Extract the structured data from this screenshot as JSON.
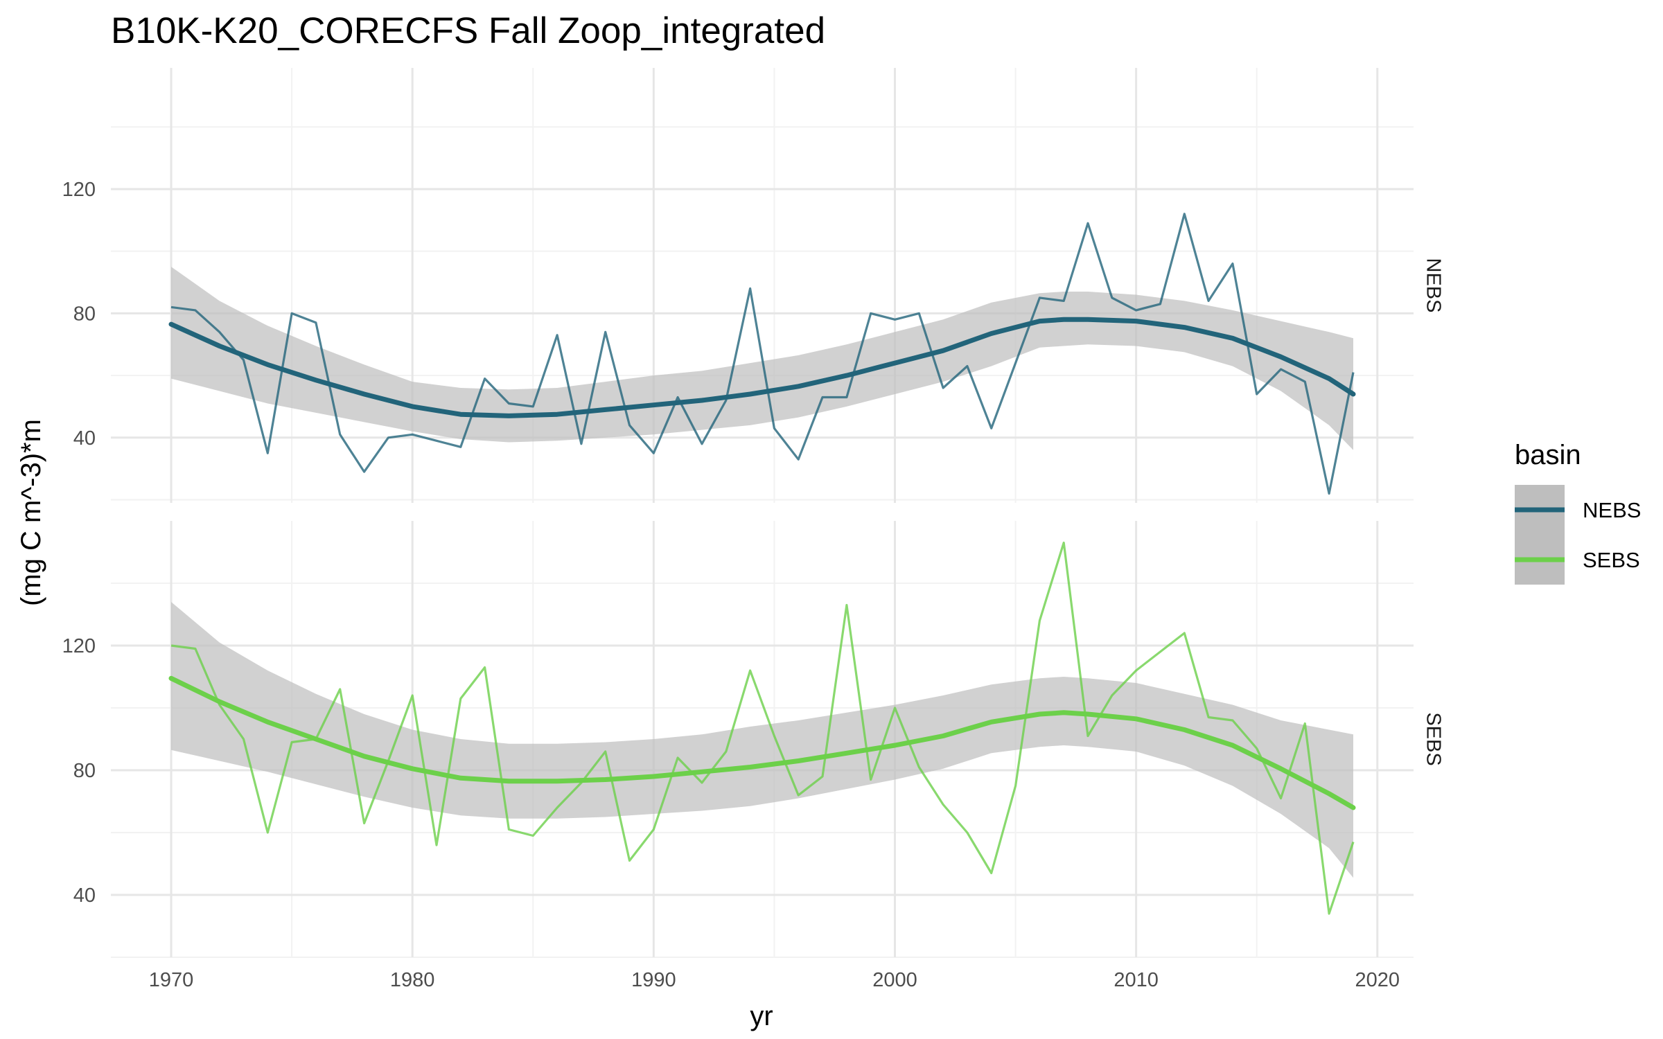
{
  "chart_data": {
    "type": "line",
    "title": "B10K-K20_CORECFS Fall Zoop_integrated",
    "xlabel": "yr",
    "ylabel": "(mg C m^-3)*m",
    "xlim": [
      1967.5,
      2021.5
    ],
    "x_ticks": [
      "1970",
      "1980",
      "1990",
      "2000",
      "2010",
      "2020"
    ],
    "x_tick_values": [
      1970,
      1980,
      1990,
      2000,
      2010,
      2020
    ],
    "y_ticks": [
      "40",
      "80",
      "120"
    ],
    "y_tick_values": [
      40,
      80,
      120
    ],
    "grid": true,
    "legend": {
      "title": "basin",
      "position": "right",
      "entries": [
        "NEBS",
        "SEBS"
      ]
    },
    "colors": {
      "NEBS": "#22647a",
      "SEBS": "#6cd04a",
      "ribbon": "#bebebe",
      "grid_major": "#e6e6e6",
      "grid_minor": "#f2f2f2"
    },
    "panels": [
      {
        "strip": "NEBS",
        "ylim": [
          19,
          159
        ],
        "series": [
          {
            "name": "NEBS",
            "kind": "annual",
            "x": [
              1970,
              1971,
              1972,
              1973,
              1974,
              1975,
              1976,
              1977,
              1978,
              1979,
              1980,
              1981,
              1982,
              1983,
              1984,
              1985,
              1986,
              1987,
              1988,
              1989,
              1990,
              1991,
              1992,
              1993,
              1994,
              1995,
              1996,
              1997,
              1998,
              1999,
              2000,
              2001,
              2002,
              2003,
              2004,
              2005,
              2006,
              2007,
              2008,
              2009,
              2010,
              2011,
              2012,
              2013,
              2014,
              2015,
              2016,
              2017,
              2018,
              2019
            ],
            "y": [
              82,
              81,
              74,
              65,
              35,
              80,
              77,
              41,
              29,
              40,
              41,
              39,
              37,
              59,
              51,
              50,
              73,
              38,
              74,
              44,
              35,
              53,
              38,
              52,
              88,
              43,
              33,
              53,
              53,
              80,
              78,
              80,
              56,
              63,
              43,
              64,
              85,
              84,
              109,
              85,
              81,
              83,
              112,
              84,
              96,
              54,
              62,
              58,
              22,
              61
            ]
          },
          {
            "name": "NEBS",
            "kind": "smooth",
            "x": [
              1970,
              1972,
              1974,
              1976,
              1978,
              1980,
              1982,
              1984,
              1986,
              1988,
              1990,
              1992,
              1994,
              1996,
              1998,
              2000,
              2002,
              2004,
              2006,
              2007,
              2008,
              2010,
              2012,
              2014,
              2016,
              2018,
              2019
            ],
            "y": [
              76.5,
              69.5,
              63.5,
              58.5,
              54,
              50,
              47.5,
              47,
              47.5,
              49,
              50.5,
              52,
              54,
              56.5,
              60,
              64,
              68,
              73.5,
              77.5,
              78,
              78,
              77.5,
              75.5,
              72,
              66,
              59,
              54
            ],
            "lower": [
              59,
              55,
              51,
              48,
              45,
              42,
              39.5,
              38.5,
              39,
              40,
              41,
              42.5,
              44,
              46.5,
              50,
              54,
              58,
              63,
              69,
              69.5,
              70,
              69.5,
              67.5,
              63,
              55,
              44,
              36
            ],
            "upper": [
              95,
              84,
              76,
              69.5,
              63.5,
              58,
              56,
              55.5,
              56,
              58,
              60,
              61.5,
              64,
              66.5,
              70,
              74,
              78,
              83.5,
              86.5,
              87,
              87,
              86,
              84,
              81,
              77.5,
              74,
              72
            ]
          }
        ]
      },
      {
        "strip": "SEBS",
        "ylim": [
          20,
          160
        ],
        "series": [
          {
            "name": "SEBS",
            "kind": "annual",
            "x": [
              1970,
              1971,
              1972,
              1973,
              1974,
              1975,
              1976,
              1977,
              1978,
              1979,
              1980,
              1981,
              1982,
              1983,
              1984,
              1985,
              1986,
              1987,
              1988,
              1989,
              1990,
              1991,
              1992,
              1993,
              1994,
              1995,
              1996,
              1997,
              1998,
              1999,
              2000,
              2001,
              2002,
              2003,
              2004,
              2005,
              2006,
              2007,
              2008,
              2009,
              2010,
              2011,
              2012,
              2013,
              2014,
              2015,
              2016,
              2017,
              2018,
              2019
            ],
            "y": [
              120,
              119,
              101,
              90,
              60,
              89,
              90,
              106,
              63,
              83,
              104,
              56,
              103,
              113,
              61,
              59,
              68,
              76,
              86,
              51,
              61,
              84,
              76,
              86,
              112,
              91,
              72,
              78,
              133,
              77,
              100,
              81,
              69,
              60,
              47,
              75,
              128,
              153,
              91,
              104,
              112,
              118,
              124,
              97,
              96,
              87,
              71,
              95,
              34,
              57
            ]
          },
          {
            "name": "SEBS",
            "kind": "smooth",
            "x": [
              1970,
              1972,
              1974,
              1976,
              1978,
              1980,
              1982,
              1984,
              1986,
              1988,
              1990,
              1992,
              1994,
              1996,
              1998,
              2000,
              2002,
              2004,
              2006,
              2007,
              2008,
              2010,
              2012,
              2014,
              2016,
              2018,
              2019
            ],
            "y": [
              109.5,
              102,
              95.5,
              90,
              84.5,
              80.5,
              77.5,
              76.5,
              76.5,
              77,
              78,
              79.5,
              81,
              83,
              85.5,
              88,
              91,
              95.5,
              98,
              98.5,
              98,
              96.5,
              93,
              88,
              80.5,
              72.5,
              68
            ],
            "lower": [
              86.5,
              83,
              79.5,
              75.5,
              71.5,
              68,
              65.5,
              64.5,
              64.5,
              65,
              66,
              67,
              68.5,
              71,
              74,
              77,
              80.5,
              85.5,
              87.5,
              88,
              87.5,
              86,
              81.5,
              75,
              66,
              55,
              45.5
            ],
            "upper": [
              134,
              121,
              112,
              104.5,
              98,
              93,
              90,
              88.5,
              88.5,
              89,
              90,
              91.5,
              94,
              96,
              98.5,
              101,
              104,
              107.5,
              109.5,
              110,
              109.5,
              108,
              104.5,
              101,
              96,
              93,
              91.5
            ]
          }
        ]
      }
    ]
  }
}
